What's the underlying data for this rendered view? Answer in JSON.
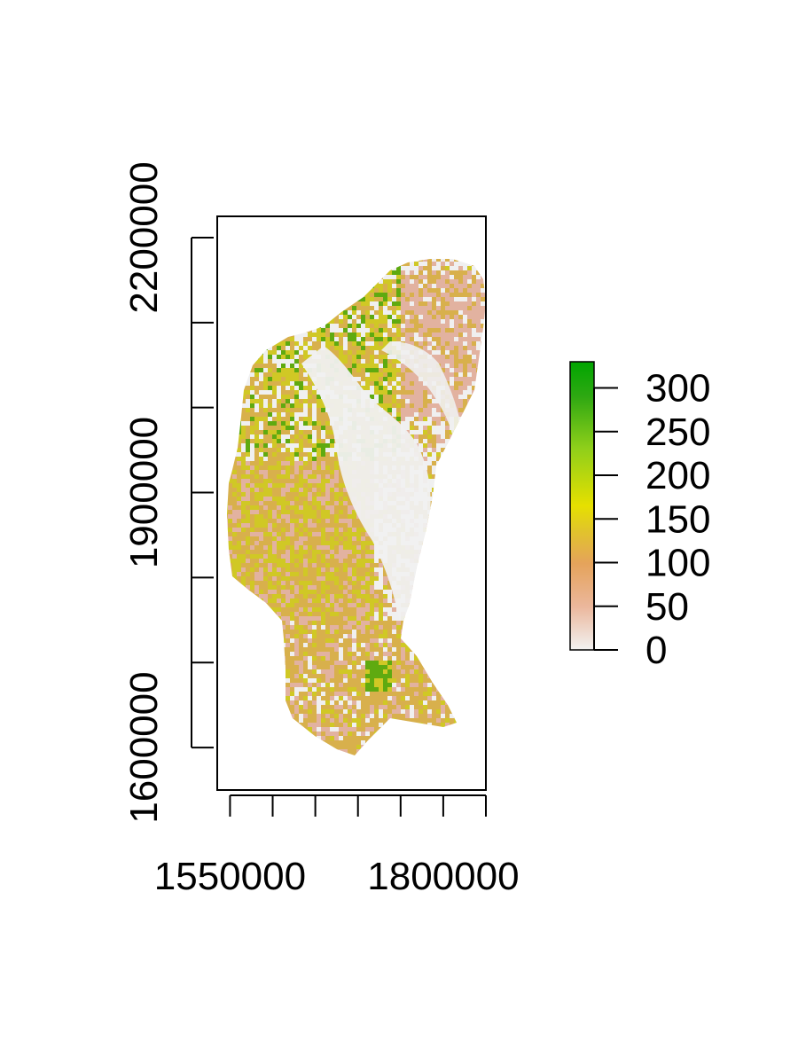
{
  "map": {
    "x_ticks": [
      {
        "value": 1550000,
        "label": "1550000"
      },
      {
        "value": 1600000,
        "label": ""
      },
      {
        "value": 1650000,
        "label": ""
      },
      {
        "value": 1700000,
        "label": ""
      },
      {
        "value": 1750000,
        "label": ""
      },
      {
        "value": 1800000,
        "label": "1800000"
      },
      {
        "value": 1850000,
        "label": ""
      }
    ],
    "y_ticks": [
      {
        "value": 1600000,
        "label": "1600000"
      },
      {
        "value": 1700000,
        "label": ""
      },
      {
        "value": 1800000,
        "label": ""
      },
      {
        "value": 1900000,
        "label": "1900000"
      },
      {
        "value": 2000000,
        "label": ""
      },
      {
        "value": 2100000,
        "label": ""
      },
      {
        "value": 2200000,
        "label": "2200000"
      }
    ],
    "x_range": [
      1535000,
      1850000
    ],
    "y_range": [
      1550000,
      2225000
    ]
  },
  "legend": {
    "range": [
      0,
      330
    ],
    "ticks": [
      {
        "value": 0,
        "label": "0"
      },
      {
        "value": 50,
        "label": "50"
      },
      {
        "value": 100,
        "label": "100"
      },
      {
        "value": 150,
        "label": "150"
      },
      {
        "value": 200,
        "label": "200"
      },
      {
        "value": 250,
        "label": "250"
      },
      {
        "value": 300,
        "label": "300"
      }
    ],
    "colors": [
      "#f2f2f2",
      "#ebb79c",
      "#e5a35b",
      "#e1c628",
      "#e6e000",
      "#8fcf1a",
      "#2ea812",
      "#00a600"
    ]
  },
  "colors": {
    "no_data": "#f0f0f0",
    "low": "#e2b2a0",
    "mid": "#d8b04c",
    "yellow": "#d0c825",
    "green": "#5faa10"
  }
}
